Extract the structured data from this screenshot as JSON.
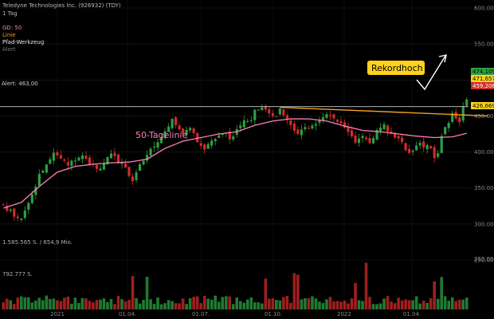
{
  "header": {
    "instrument": "Teledyne Technologies Inc. (926932) (TDY)",
    "interval": "1 Tag",
    "indicator": "GD: 50",
    "tool_line": "Linie",
    "tool_path": "Pfad-Werkzeug",
    "alert_label": "Alert"
  },
  "volume_info": {
    "label1": "1.585.565 S. / 654,9 Mio.",
    "label2": "792.777 S."
  },
  "alert_line": {
    "label": "Alert: 463,00"
  },
  "annotations": {
    "record": "Rekordhoch",
    "ma_label": "50-Tagelinie"
  },
  "price_tags": {
    "t1": "474,109",
    "t2": "471,657",
    "t3": "459,206",
    "t4": "426,669"
  },
  "colors": {
    "background": "#000000",
    "up": "#2ea043",
    "down": "#d22b2b",
    "ma": "#ff7eb6",
    "trendline": "#f0a020",
    "callout": "#ffd21a",
    "alert": "#cccccc"
  },
  "chart_data": {
    "type": "candlestick",
    "title": "Teledyne Technologies Inc. (926932) (TDY)",
    "y_ticks": [
      "600.000",
      "550.000",
      "500.000",
      "450.000",
      "400.000",
      "350.000",
      "300.000",
      "250.000"
    ],
    "y_values": [
      600,
      550,
      500,
      450,
      400,
      350,
      300,
      250
    ],
    "x_ticks": [
      "2021",
      "01.04.",
      "01.07.",
      "01.10.",
      "2022",
      "01.04."
    ],
    "ylim": [
      200,
      600
    ],
    "price_path": [
      [
        0,
        325
      ],
      [
        3,
        312
      ],
      [
        5,
        305
      ],
      [
        8,
        340
      ],
      [
        10,
        368
      ],
      [
        12,
        382
      ],
      [
        14,
        395
      ],
      [
        16,
        390
      ],
      [
        18,
        385
      ],
      [
        20,
        392
      ],
      [
        22,
        398
      ],
      [
        24,
        385
      ],
      [
        26,
        375
      ],
      [
        28,
        385
      ],
      [
        30,
        394
      ],
      [
        32,
        388
      ],
      [
        34,
        380
      ],
      [
        36,
        360
      ],
      [
        38,
        385
      ],
      [
        40,
        395
      ],
      [
        42,
        410
      ],
      [
        44,
        420
      ],
      [
        46,
        432
      ],
      [
        47,
        450
      ],
      [
        48,
        438
      ],
      [
        50,
        425
      ],
      [
        52,
        430
      ],
      [
        54,
        415
      ],
      [
        56,
        405
      ],
      [
        58,
        415
      ],
      [
        60,
        420
      ],
      [
        62,
        425
      ],
      [
        64,
        418
      ],
      [
        66,
        440
      ],
      [
        68,
        440
      ],
      [
        70,
        455
      ],
      [
        72,
        458
      ],
      [
        74,
        455
      ],
      [
        76,
        452
      ],
      [
        77,
        462
      ],
      [
        78,
        450
      ],
      [
        80,
        440
      ],
      [
        82,
        425
      ],
      [
        84,
        432
      ],
      [
        86,
        440
      ],
      [
        88,
        445
      ],
      [
        90,
        455
      ],
      [
        92,
        448
      ],
      [
        94,
        440
      ],
      [
        96,
        430
      ],
      [
        98,
        415
      ],
      [
        100,
        425
      ],
      [
        102,
        410
      ],
      [
        104,
        432
      ],
      [
        106,
        440
      ],
      [
        108,
        425
      ],
      [
        110,
        418
      ],
      [
        112,
        405
      ],
      [
        114,
        398
      ],
      [
        116,
        412
      ],
      [
        118,
        408
      ],
      [
        120,
        395
      ],
      [
        121,
        400
      ],
      [
        122,
        420
      ],
      [
        124,
        442
      ],
      [
        125,
        450
      ],
      [
        126,
        448
      ],
      [
        127,
        440
      ],
      [
        128,
        465
      ],
      [
        129,
        472
      ]
    ],
    "ma50_path": [
      [
        0,
        322
      ],
      [
        5,
        330
      ],
      [
        10,
        352
      ],
      [
        15,
        372
      ],
      [
        20,
        380
      ],
      [
        25,
        383
      ],
      [
        30,
        385
      ],
      [
        35,
        386
      ],
      [
        40,
        390
      ],
      [
        45,
        405
      ],
      [
        50,
        415
      ],
      [
        55,
        420
      ],
      [
        60,
        425
      ],
      [
        65,
        428
      ],
      [
        70,
        437
      ],
      [
        75,
        443
      ],
      [
        80,
        446
      ],
      [
        85,
        446
      ],
      [
        90,
        443
      ],
      [
        95,
        436
      ],
      [
        100,
        430
      ],
      [
        105,
        428
      ],
      [
        110,
        425
      ],
      [
        115,
        422
      ],
      [
        120,
        420
      ],
      [
        125,
        421
      ],
      [
        129,
        426
      ]
    ],
    "trendline": {
      "start": [
        77,
        462
      ],
      "end": [
        135,
        450
      ]
    },
    "alert_level": 463,
    "volume_ylim": [
      0,
      275
    ],
    "volume_ticks": [
      "250.000"
    ],
    "volume_tick_values": [
      250
    ]
  }
}
